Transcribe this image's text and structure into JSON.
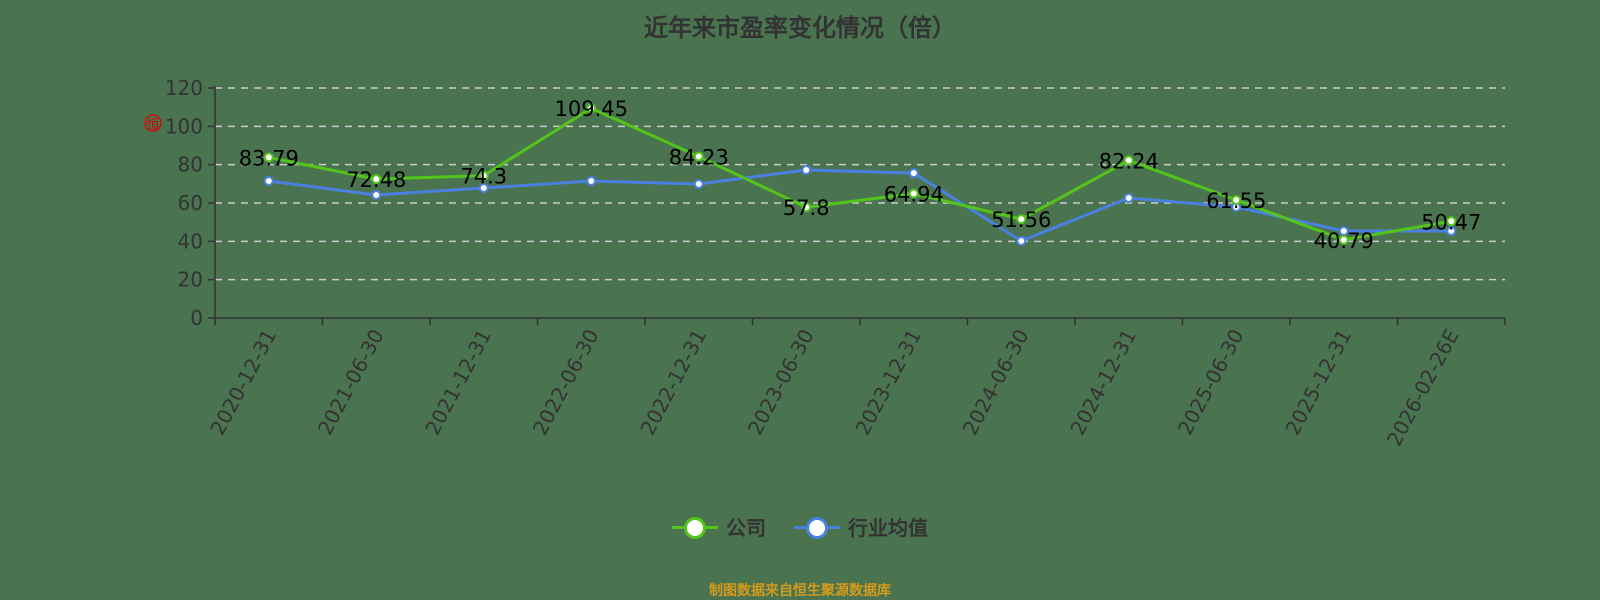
{
  "title": "近年来市盈率变化情况（倍）",
  "source": "制图数据来自恒生聚源数据库",
  "watermark": "恒",
  "colors": {
    "background": "#4a7350",
    "company": "#52c41a",
    "industry": "#4a80e0",
    "axis": "#333333",
    "grid": "#cccccc",
    "source_text": "#d49b1c"
  },
  "legend": [
    {
      "label": "公司",
      "color": "#52c41a"
    },
    {
      "label": "行业均值",
      "color": "#4a80e0"
    }
  ],
  "chart_data": {
    "type": "line",
    "title": "近年来市盈率变化情况（倍）",
    "xlabel": "",
    "ylabel": "",
    "ylim": [
      0,
      120
    ],
    "yticks": [
      0,
      20,
      40,
      60,
      80,
      100,
      120
    ],
    "grid": true,
    "legend_position": "bottom",
    "categories": [
      "2020-12-31",
      "2021-06-30",
      "2021-12-31",
      "2022-06-30",
      "2022-12-31",
      "2023-06-30",
      "2023-12-31",
      "2024-06-30",
      "2024-12-31",
      "2025-06-30",
      "2025-12-31",
      "2026-02-26E"
    ],
    "series": [
      {
        "name": "公司",
        "color": "#52c41a",
        "labeled": true,
        "values": [
          83.79,
          72.48,
          74.3,
          109.45,
          84.23,
          57.8,
          64.94,
          51.56,
          82.24,
          61.55,
          40.79,
          50.47
        ]
      },
      {
        "name": "行业均值",
        "color": "#4a80e0",
        "labeled": false,
        "values": [
          71.5,
          64.2,
          67.8,
          71.5,
          69.9,
          77.2,
          75.6,
          40.2,
          62.6,
          57.9,
          45.4,
          45.4
        ]
      }
    ]
  }
}
